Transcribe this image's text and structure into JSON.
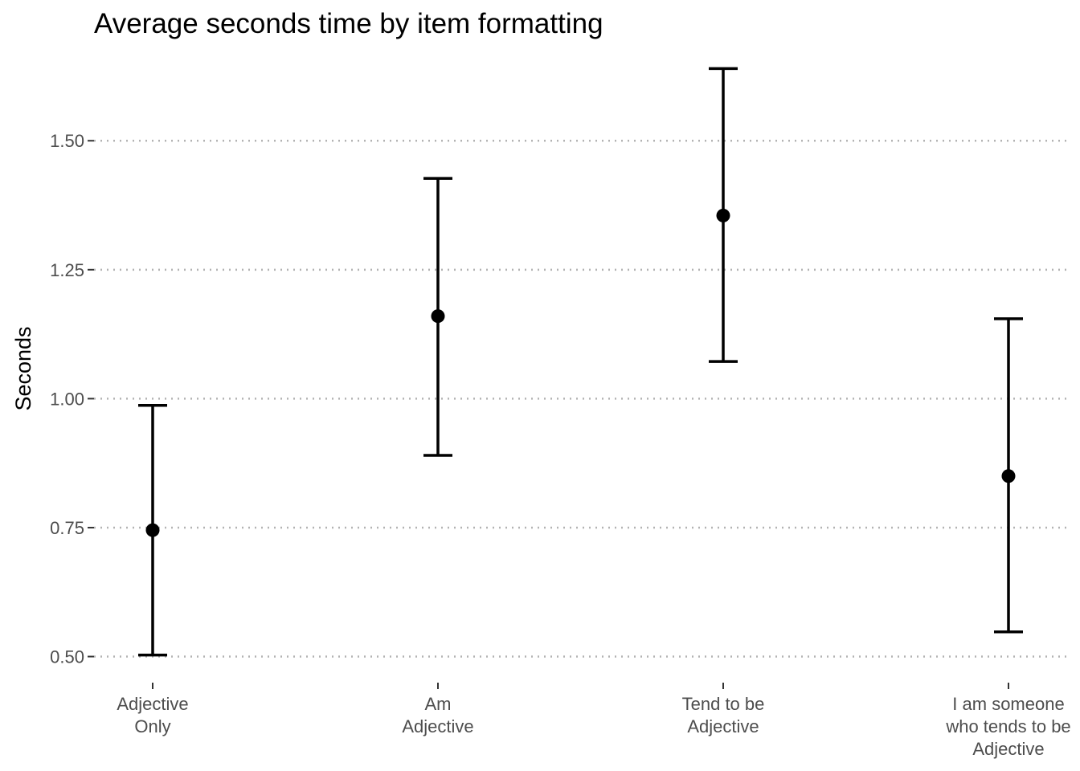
{
  "chart_data": {
    "type": "errorbar",
    "title": "Average seconds time by item formatting",
    "xlabel": "",
    "ylabel": "Seconds",
    "ylim": [
      0.465,
      1.695
    ],
    "yticks": [
      0.5,
      0.75,
      1.0,
      1.25,
      1.5
    ],
    "ytick_labels": [
      "0.50",
      "0.75",
      "1.00",
      "1.25",
      "1.50"
    ],
    "grid": "horizontal dotted major",
    "categories": [
      [
        "Adjective",
        "Only"
      ],
      [
        "Am",
        "Adjective"
      ],
      [
        "Tend to be",
        "Adjective"
      ],
      [
        "I am someone",
        "who tends to be",
        "Adjective"
      ]
    ],
    "values": [
      0.745,
      1.16,
      1.355,
      0.85
    ],
    "lower": [
      0.503,
      0.89,
      1.072,
      0.548
    ],
    "upper": [
      0.987,
      1.427,
      1.64,
      1.155
    ],
    "colors": {
      "point": "#000000",
      "errorbar": "#000000",
      "grid": "#b3b3b3",
      "tick_text": "#4d4d4d",
      "text": "#000000"
    }
  }
}
